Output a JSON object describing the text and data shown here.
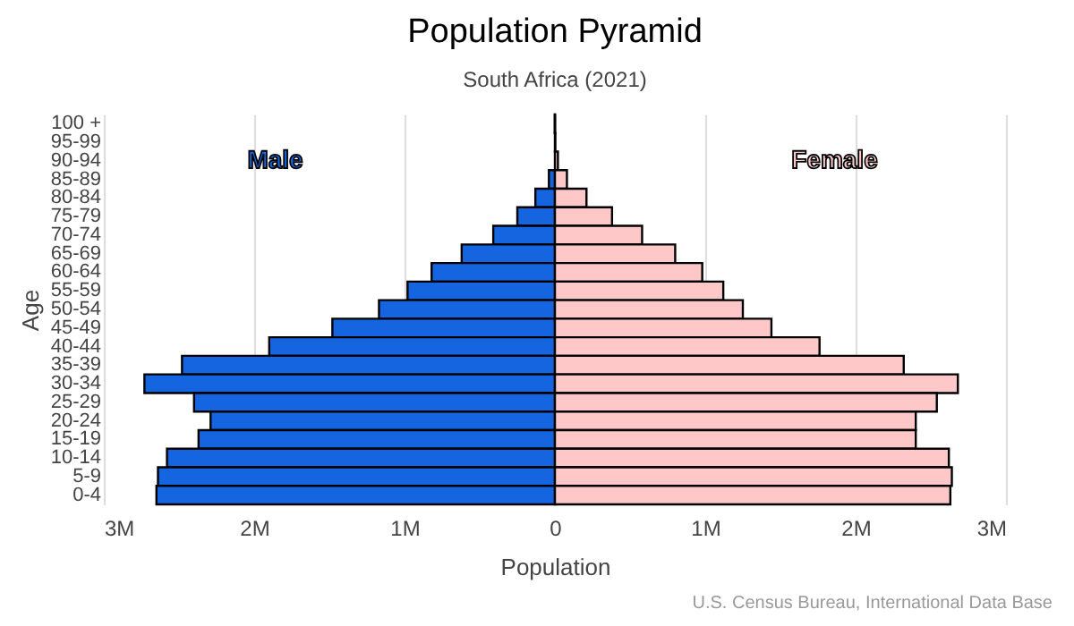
{
  "chart_data": {
    "type": "bar",
    "orientation": "horizontal",
    "stacked": true,
    "title": "Population Pyramid",
    "subtitle": "South Africa (2021)",
    "xlabel": "Population",
    "ylabel": "Age",
    "categories": [
      "100 +",
      "95-99",
      "90-94",
      "85-89",
      "80-84",
      "75-79",
      "70-74",
      "65-69",
      "60-64",
      "55-59",
      "50-54",
      "45-49",
      "40-44",
      "35-39",
      "30-34",
      "25-29",
      "20-24",
      "15-19",
      "10-14",
      "5-9",
      "0-4"
    ],
    "series": [
      {
        "name": "Male",
        "color": "#1565e0",
        "values": [
          -1000,
          null,
          null,
          -40000,
          -130000,
          -250000,
          -410000,
          -620000,
          -820000,
          -980000,
          -1170000,
          -1480000,
          -1900000,
          -2480000,
          -2730000,
          -2400000,
          -2290000,
          -2370000,
          -2580000,
          -2640000,
          -2650000
        ]
      },
      {
        "name": "Female",
        "color": "#ffc8c8",
        "values": [
          1000,
          3000,
          20000,
          80000,
          210000,
          380000,
          580000,
          800000,
          980000,
          1120000,
          1250000,
          1440000,
          1760000,
          2320000,
          2680000,
          2540000,
          2400000,
          2400000,
          2620000,
          2640000,
          2630000
        ]
      }
    ],
    "xlim": [
      -3000000,
      3000000
    ],
    "xticks": [
      {
        "value": -3000000,
        "label": "3M"
      },
      {
        "value": -2000000,
        "label": "2M"
      },
      {
        "value": -1000000,
        "label": "1M"
      },
      0,
      {
        "value": 1000000,
        "label": "1M"
      },
      {
        "value": 2000000,
        "label": "2M"
      },
      {
        "value": 3000000,
        "label": "3M"
      }
    ],
    "grid": "x",
    "annotations": [
      "U.S. Census Bureau, International Data Base"
    ]
  }
}
